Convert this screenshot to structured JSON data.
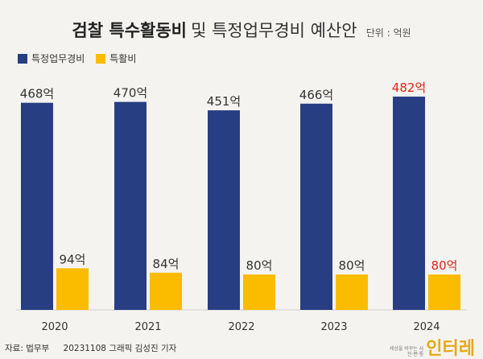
{
  "header": {
    "title_main": "검찰 특수활동비",
    "title_sub": "및 특정업무경비 예산안",
    "unit": "단위 : 억원"
  },
  "colors": {
    "series1": "#283e83",
    "series2": "#fbbc00",
    "highlight_label": "#e2231a",
    "normal_label": "#333333"
  },
  "chart_data": {
    "type": "bar",
    "categories": [
      "2020",
      "2021",
      "2022",
      "2023",
      "2024"
    ],
    "series": [
      {
        "name": "특정업무경비",
        "values": [
          468,
          470,
          451,
          466,
          482
        ],
        "labels": [
          "468억",
          "470억",
          "451억",
          "466억",
          "482억"
        ],
        "highlight": [
          false,
          false,
          false,
          false,
          true
        ]
      },
      {
        "name": "특활비",
        "values": [
          94,
          84,
          80,
          80,
          80
        ],
        "labels": [
          "94억",
          "84억",
          "80억",
          "80억",
          "80억"
        ],
        "highlight": [
          false,
          false,
          false,
          false,
          true
        ]
      }
    ],
    "ylim": [
      0,
      482
    ],
    "grid": false,
    "legend": "top-left"
  },
  "footer": {
    "source": "자료: 법무부",
    "credit": "20231108 그래픽 김성진 기자",
    "logo_tagline": "세상을 바꾸는 사진·편·통",
    "logo_name": "인터레"
  }
}
